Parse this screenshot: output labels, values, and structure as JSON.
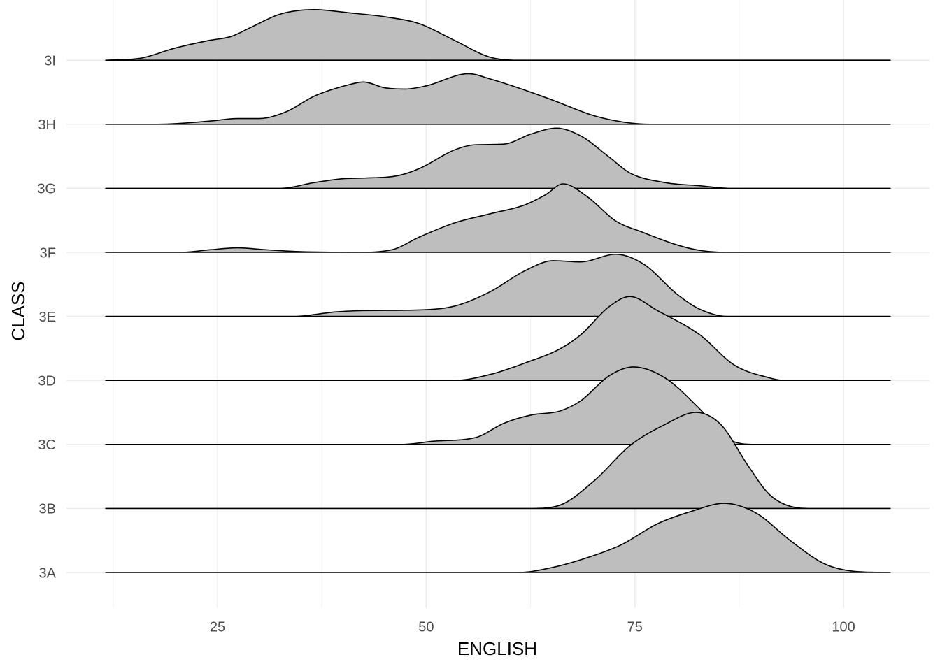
{
  "chart_data": {
    "type": "ridgeline",
    "xlabel": "ENGLISH",
    "ylabel": "CLASS",
    "categories": [
      "3A",
      "3B",
      "3C",
      "3D",
      "3E",
      "3F",
      "3G",
      "3H",
      "3I"
    ],
    "ridges": [
      {
        "x": [
          11.6,
          61,
          65.2,
          70.2,
          73.5,
          77.7,
          81.9,
          85.7,
          89.5,
          93.7,
          97.8,
          102,
          105.6
        ],
        "values": [
          0,
          0,
          0.08,
          0.27,
          0.44,
          0.76,
          0.96,
          1.08,
          0.93,
          0.49,
          0.13,
          0.01,
          0
        ]
      },
      {
        "x": [
          11.6,
          62.6,
          66,
          70.2,
          74.4,
          78.6,
          82.3,
          85.3,
          88.6,
          91.1,
          93.7,
          96.2,
          105.6
        ],
        "values": [
          0,
          0,
          0.05,
          0.44,
          0.98,
          1.31,
          1.5,
          1.31,
          0.66,
          0.22,
          0.03,
          0,
          0
        ]
      },
      {
        "x": [
          11.6,
          47.1,
          50.9,
          56,
          59.3,
          62.6,
          66,
          68.5,
          71.9,
          74.8,
          78.6,
          82.8,
          86.1,
          89.5,
          105.6
        ],
        "values": [
          0,
          0,
          0.05,
          0.11,
          0.33,
          0.46,
          0.52,
          0.68,
          1.07,
          1.21,
          1.04,
          0.55,
          0.09,
          0,
          0
        ]
      },
      {
        "x": [
          11.6,
          53.4,
          57.6,
          61.8,
          66,
          68.5,
          71.9,
          74.4,
          77.7,
          82.8,
          86.9,
          91.1,
          92.8,
          105.6
        ],
        "values": [
          0,
          0,
          0.09,
          0.27,
          0.49,
          0.71,
          1.15,
          1.31,
          1.09,
          0.71,
          0.24,
          0.04,
          0,
          0
        ]
      },
      {
        "x": [
          11.6,
          34.1,
          39.2,
          42.5,
          49.2,
          53.4,
          57.6,
          61.8,
          65.2,
          68.5,
          72.7,
          76,
          80.2,
          82.8,
          86.1,
          105.6
        ],
        "values": [
          0,
          0,
          0.07,
          0.09,
          0.1,
          0.16,
          0.38,
          0.71,
          0.87,
          0.85,
          0.97,
          0.82,
          0.33,
          0.11,
          0,
          0
        ]
      },
      {
        "x": [
          11.6,
          20.7,
          24.1,
          27.4,
          30.8,
          35,
          41.7,
          45.9,
          49.2,
          53.4,
          57.6,
          61.8,
          64.3,
          66.4,
          69.3,
          72.7,
          76,
          80.2,
          82.8,
          86.1,
          105.6
        ],
        "values": [
          0,
          0,
          0.04,
          0.07,
          0.04,
          0.01,
          0,
          0.04,
          0.24,
          0.46,
          0.6,
          0.74,
          0.9,
          1.07,
          0.87,
          0.49,
          0.31,
          0.11,
          0.03,
          0,
          0
        ]
      },
      {
        "x": [
          11.6,
          32.5,
          36.6,
          40,
          42.5,
          46.7,
          49.2,
          53.4,
          55.9,
          59.3,
          62.6,
          65.6,
          68.5,
          71.9,
          74.4,
          78.6,
          82.8,
          86.5,
          105.6
        ],
        "values": [
          0,
          0,
          0.09,
          0.15,
          0.16,
          0.2,
          0.31,
          0.6,
          0.68,
          0.69,
          0.85,
          0.94,
          0.82,
          0.49,
          0.24,
          0.09,
          0.04,
          0,
          0
        ]
      },
      {
        "x": [
          11.6,
          17.8,
          24.1,
          27.4,
          30,
          33.3,
          36.6,
          40.8,
          42.5,
          45,
          47.5,
          50,
          55.1,
          57.6,
          61,
          65.1,
          70.2,
          74.4,
          76.9,
          105.6
        ],
        "values": [
          0,
          0,
          0.05,
          0.09,
          0.09,
          0.2,
          0.44,
          0.62,
          0.66,
          0.57,
          0.55,
          0.6,
          0.79,
          0.71,
          0.57,
          0.38,
          0.13,
          0.02,
          0,
          0
        ]
      },
      {
        "x": [
          11.6,
          15.7,
          19.9,
          24,
          26.6,
          29.1,
          32.5,
          36.6,
          40.8,
          45,
          49.2,
          53.4,
          57.6,
          61,
          105.6
        ],
        "values": [
          0,
          0.03,
          0.19,
          0.31,
          0.37,
          0.52,
          0.72,
          0.79,
          0.74,
          0.68,
          0.57,
          0.31,
          0.05,
          0,
          0
        ]
      }
    ],
    "fill": "#bebebe",
    "line_color": "#000000",
    "xlim": [
      6.9,
      110.3
    ],
    "xticks": [
      25,
      50,
      75,
      100
    ],
    "xminor": [
      12.5,
      37.5,
      62.5,
      87.5
    ],
    "grid": true
  }
}
